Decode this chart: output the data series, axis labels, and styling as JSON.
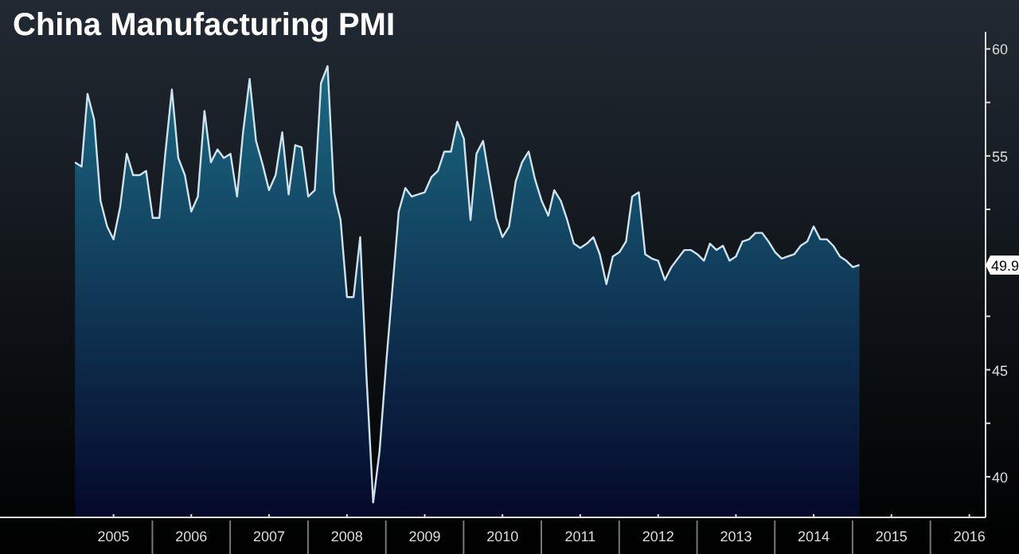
{
  "chart_data": {
    "type": "area",
    "title": "China Manufacturing PMI",
    "x": [
      "2005-01",
      "2005-02",
      "2005-03",
      "2005-04",
      "2005-05",
      "2005-06",
      "2005-07",
      "2005-08",
      "2005-09",
      "2005-10",
      "2005-11",
      "2005-12",
      "2006-01",
      "2006-02",
      "2006-03",
      "2006-04",
      "2006-05",
      "2006-06",
      "2006-07",
      "2006-08",
      "2006-09",
      "2006-10",
      "2006-11",
      "2006-12",
      "2007-01",
      "2007-02",
      "2007-03",
      "2007-04",
      "2007-05",
      "2007-06",
      "2007-07",
      "2007-08",
      "2007-09",
      "2007-10",
      "2007-11",
      "2007-12",
      "2008-01",
      "2008-02",
      "2008-03",
      "2008-04",
      "2008-05",
      "2008-06",
      "2008-07",
      "2008-08",
      "2008-09",
      "2008-10",
      "2008-11",
      "2008-12",
      "2009-01",
      "2009-02",
      "2009-03",
      "2009-04",
      "2009-05",
      "2009-06",
      "2009-07",
      "2009-08",
      "2009-09",
      "2009-10",
      "2009-11",
      "2009-12",
      "2010-01",
      "2010-02",
      "2010-03",
      "2010-04",
      "2010-05",
      "2010-06",
      "2010-07",
      "2010-08",
      "2010-09",
      "2010-10",
      "2010-11",
      "2010-12",
      "2011-01",
      "2011-02",
      "2011-03",
      "2011-04",
      "2011-05",
      "2011-06",
      "2011-07",
      "2011-08",
      "2011-09",
      "2011-10",
      "2011-11",
      "2011-12",
      "2012-01",
      "2012-02",
      "2012-03",
      "2012-04",
      "2012-05",
      "2012-06",
      "2012-07",
      "2012-08",
      "2012-09",
      "2012-10",
      "2012-11",
      "2012-12",
      "2013-01",
      "2013-02",
      "2013-03",
      "2013-04",
      "2013-05",
      "2013-06",
      "2013-07",
      "2013-08",
      "2013-09",
      "2013-10",
      "2013-11",
      "2013-12",
      "2014-01",
      "2014-02",
      "2014-03",
      "2014-04",
      "2014-05",
      "2014-06",
      "2014-07",
      "2014-08",
      "2014-09",
      "2014-10",
      "2014-11",
      "2014-12",
      "2015-01",
      "2015-02"
    ],
    "series": [
      {
        "color": "#1b6a84",
        "values": [
          54.7,
          54.5,
          57.9,
          56.7,
          52.9,
          51.7,
          51.1,
          52.6,
          55.1,
          54.1,
          54.1,
          54.3,
          52.1,
          52.1,
          55.1,
          58.1,
          54.9,
          54.1,
          52.4,
          53.1,
          57.1,
          54.7,
          55.3,
          54.9,
          55.1,
          53.1,
          56.1,
          58.6,
          55.7,
          54.6,
          53.4,
          54.1,
          56.1,
          53.2,
          55.5,
          55.4,
          53.1,
          53.4,
          58.4,
          59.2,
          53.3,
          52.0,
          48.4,
          48.4,
          51.2,
          44.6,
          38.8,
          41.2,
          45.3,
          49.0,
          52.4,
          53.5,
          53.1,
          53.2,
          53.3,
          54.0,
          54.3,
          55.2,
          55.2,
          56.6,
          55.8,
          52.0,
          55.1,
          55.7,
          53.9,
          52.1,
          51.2,
          51.7,
          53.8,
          54.7,
          55.2,
          53.9,
          52.9,
          52.2,
          53.4,
          52.9,
          52.0,
          50.9,
          50.7,
          50.9,
          51.2,
          50.4,
          49.0,
          50.3,
          50.5,
          51.0,
          53.1,
          53.3,
          50.4,
          50.2,
          50.1,
          49.2,
          49.8,
          50.2,
          50.6,
          50.6,
          50.4,
          50.1,
          50.9,
          50.6,
          50.8,
          50.1,
          50.3,
          51.0,
          51.1,
          51.4,
          51.4,
          51.0,
          50.5,
          50.2,
          50.3,
          50.4,
          50.8,
          51.0,
          51.7,
          51.1,
          51.1,
          50.8,
          50.3,
          50.1,
          49.8,
          49.9
        ]
      }
    ],
    "xlim": [
      "2004-01-15",
      "2016-09-15"
    ],
    "xticks": [
      {
        "value": "2005-07",
        "label": "2005"
      },
      {
        "value": "2006-07",
        "label": "2006"
      },
      {
        "value": "2007-07",
        "label": "2007"
      },
      {
        "value": "2008-07",
        "label": "2008"
      },
      {
        "value": "2009-07",
        "label": "2009"
      },
      {
        "value": "2010-07",
        "label": "2010"
      },
      {
        "value": "2011-07",
        "label": "2011"
      },
      {
        "value": "2012-07",
        "label": "2012"
      },
      {
        "value": "2013-07",
        "label": "2013"
      },
      {
        "value": "2014-07",
        "label": "2014"
      },
      {
        "value": "2015-07",
        "label": "2015"
      },
      {
        "value": "2016-07",
        "label": "2016"
      }
    ],
    "ylim": [
      38.1,
      60.8
    ],
    "yticks": [
      40,
      {
        "value": 42.5,
        "label": null
      },
      45,
      {
        "value": 47.5,
        "label": null
      },
      {
        "value": 52.5,
        "label": null
      },
      55,
      {
        "value": 57.5,
        "label": null
      },
      60
    ],
    "annotations": [
      "49.9"
    ],
    "grid": false
  }
}
